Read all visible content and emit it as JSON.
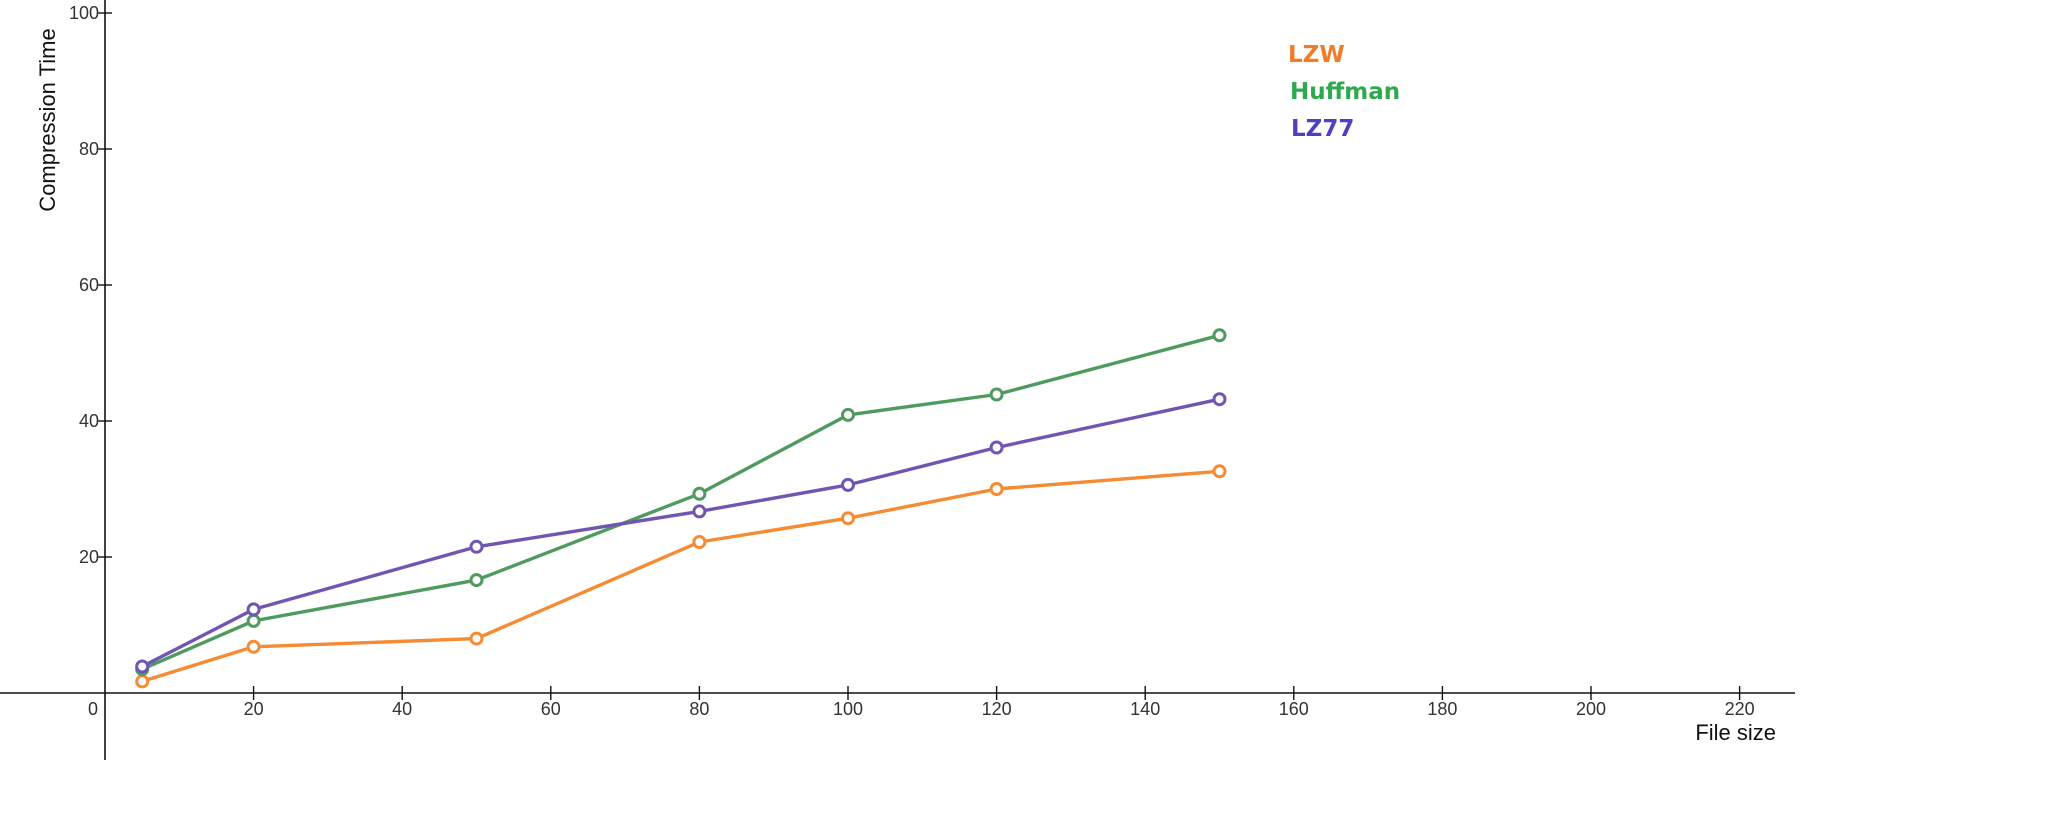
{
  "chart_data": {
    "type": "line",
    "title": "",
    "xlabel": "File size",
    "ylabel": "Compression Time",
    "xlim": [
      0,
      230
    ],
    "ylim": [
      0,
      100
    ],
    "x_ticks": [
      0,
      20,
      40,
      60,
      80,
      100,
      120,
      140,
      160,
      180,
      200,
      220
    ],
    "y_ticks": [
      20,
      40,
      60,
      80,
      100
    ],
    "grid": false,
    "legend_position": "top-right",
    "x": [
      5,
      20,
      50,
      80,
      100,
      120,
      150
    ],
    "series": [
      {
        "name": "LZW",
        "color": "#f58b33",
        "label_color": "#f07d26",
        "values": [
          1.7,
          6.8,
          8.0,
          22.2,
          25.7,
          30.0,
          32.6
        ]
      },
      {
        "name": "Huffman",
        "color": "#4f9a5e",
        "label_color": "#2eaa4e",
        "values": [
          3.5,
          10.6,
          16.6,
          29.3,
          40.9,
          43.9,
          52.6
        ]
      },
      {
        "name": "LZ77",
        "color": "#7155b3",
        "label_color": "#4c40c4",
        "values": [
          3.9,
          12.3,
          21.5,
          26.7,
          30.6,
          36.1,
          43.2
        ]
      }
    ]
  }
}
